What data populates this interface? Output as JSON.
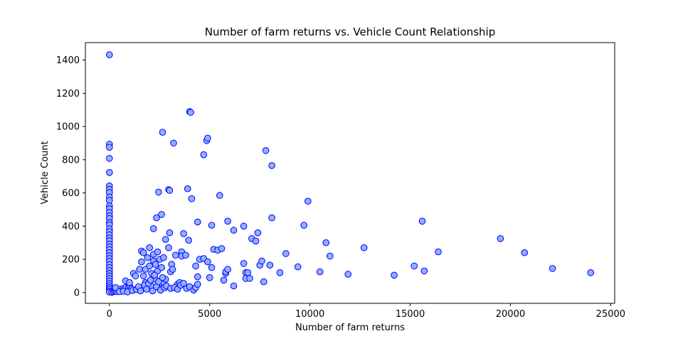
{
  "chart_data": {
    "type": "scatter",
    "title": "Number of farm returns vs. Vehicle Count Relationship",
    "xlabel": "Number of farm returns",
    "ylabel": "Vehicle Count",
    "xlim": [
      -1200,
      25200
    ],
    "ylim": [
      -65,
      1505
    ],
    "xticks": [
      0,
      5000,
      10000,
      15000,
      20000,
      25000
    ],
    "yticks": [
      0,
      200,
      400,
      600,
      800,
      1000,
      1200,
      1400
    ],
    "grid": false,
    "legend": "none",
    "marker_face_color": "#90b0ff",
    "marker_edge_color": "#0000ff",
    "points": [
      [
        0,
        1432
      ],
      [
        0,
        893
      ],
      [
        0,
        875
      ],
      [
        0,
        808
      ],
      [
        0,
        723
      ],
      [
        0,
        642
      ],
      [
        0,
        621
      ],
      [
        0,
        602
      ],
      [
        0,
        575
      ],
      [
        0,
        555
      ],
      [
        0,
        522
      ],
      [
        0,
        505
      ],
      [
        0,
        482
      ],
      [
        0,
        462
      ],
      [
        0,
        446
      ],
      [
        0,
        422
      ],
      [
        0,
        408
      ],
      [
        0,
        384
      ],
      [
        0,
        367
      ],
      [
        0,
        348
      ],
      [
        0,
        328
      ],
      [
        0,
        312
      ],
      [
        0,
        292
      ],
      [
        0,
        275
      ],
      [
        0,
        258
      ],
      [
        0,
        240
      ],
      [
        0,
        222
      ],
      [
        0,
        205
      ],
      [
        0,
        188
      ],
      [
        0,
        168
      ],
      [
        0,
        150
      ],
      [
        0,
        132
      ],
      [
        0,
        115
      ],
      [
        0,
        100
      ],
      [
        0,
        85
      ],
      [
        0,
        70
      ],
      [
        0,
        55
      ],
      [
        0,
        42
      ],
      [
        0,
        30
      ],
      [
        0,
        20
      ],
      [
        0,
        10
      ],
      [
        0,
        3
      ],
      [
        120,
        2
      ],
      [
        200,
        5
      ],
      [
        260,
        8
      ],
      [
        320,
        12
      ],
      [
        380,
        6
      ],
      [
        450,
        15
      ],
      [
        520,
        20
      ],
      [
        600,
        10
      ],
      [
        680,
        25
      ],
      [
        750,
        18
      ],
      [
        820,
        30
      ],
      [
        880,
        12
      ],
      [
        950,
        28
      ],
      [
        1020,
        40
      ],
      [
        1100,
        22
      ],
      [
        800,
        70
      ],
      [
        1000,
        60
      ],
      [
        1200,
        115
      ],
      [
        1300,
        100
      ],
      [
        1400,
        25
      ],
      [
        1500,
        140
      ],
      [
        1600,
        250
      ],
      [
        1600,
        185
      ],
      [
        1700,
        240
      ],
      [
        1700,
        100
      ],
      [
        1800,
        60
      ],
      [
        1800,
        140
      ],
      [
        1900,
        210
      ],
      [
        2000,
        270
      ],
      [
        2000,
        160
      ],
      [
        2100,
        115
      ],
      [
        2100,
        40
      ],
      [
        2200,
        385
      ],
      [
        2200,
        190
      ],
      [
        2200,
        230
      ],
      [
        2300,
        170
      ],
      [
        2300,
        80
      ],
      [
        2350,
        450
      ],
      [
        2400,
        245
      ],
      [
        2400,
        130
      ],
      [
        2450,
        605
      ],
      [
        2500,
        200
      ],
      [
        2500,
        25
      ],
      [
        2600,
        470
      ],
      [
        2600,
        150
      ],
      [
        2650,
        965
      ],
      [
        2700,
        210
      ],
      [
        2700,
        60
      ],
      [
        2800,
        320
      ],
      [
        2800,
        80
      ],
      [
        2950,
        620
      ],
      [
        2950,
        270
      ],
      [
        3000,
        615
      ],
      [
        3000,
        360
      ],
      [
        3050,
        125
      ],
      [
        3100,
        170
      ],
      [
        3150,
        140
      ],
      [
        3200,
        900
      ],
      [
        3300,
        225
      ],
      [
        3400,
        50
      ],
      [
        3500,
        60
      ],
      [
        3600,
        245
      ],
      [
        3600,
        220
      ],
      [
        3700,
        355
      ],
      [
        3800,
        225
      ],
      [
        3900,
        625
      ],
      [
        3950,
        315
      ],
      [
        4000,
        1090
      ],
      [
        4050,
        1085
      ],
      [
        4100,
        565
      ],
      [
        4300,
        160
      ],
      [
        4400,
        425
      ],
      [
        4400,
        95
      ],
      [
        4500,
        200
      ],
      [
        4700,
        830
      ],
      [
        4700,
        205
      ],
      [
        4850,
        915
      ],
      [
        4900,
        930
      ],
      [
        4900,
        185
      ],
      [
        5000,
        90
      ],
      [
        5100,
        150
      ],
      [
        5100,
        405
      ],
      [
        5200,
        260
      ],
      [
        5400,
        255
      ],
      [
        5500,
        585
      ],
      [
        5600,
        265
      ],
      [
        5700,
        75
      ],
      [
        5800,
        115
      ],
      [
        5800,
        125
      ],
      [
        5900,
        430
      ],
      [
        5900,
        140
      ],
      [
        6200,
        375
      ],
      [
        6200,
        40
      ],
      [
        6700,
        400
      ],
      [
        6700,
        175
      ],
      [
        6800,
        120
      ],
      [
        6800,
        85
      ],
      [
        6900,
        120
      ],
      [
        7000,
        85
      ],
      [
        7100,
        325
      ],
      [
        7300,
        310
      ],
      [
        7400,
        360
      ],
      [
        7500,
        165
      ],
      [
        7600,
        190
      ],
      [
        7700,
        65
      ],
      [
        7800,
        855
      ],
      [
        8000,
        165
      ],
      [
        8100,
        765
      ],
      [
        8100,
        450
      ],
      [
        8500,
        120
      ],
      [
        8800,
        235
      ],
      [
        9400,
        155
      ],
      [
        9700,
        405
      ],
      [
        9900,
        550
      ],
      [
        10500,
        125
      ],
      [
        10800,
        300
      ],
      [
        11000,
        220
      ],
      [
        11900,
        110
      ],
      [
        12700,
        270
      ],
      [
        14200,
        105
      ],
      [
        15200,
        160
      ],
      [
        15600,
        430
      ],
      [
        15700,
        130
      ],
      [
        16400,
        245
      ],
      [
        19500,
        325
      ],
      [
        20700,
        240
      ],
      [
        22100,
        145
      ],
      [
        24000,
        120
      ],
      [
        300,
        30
      ],
      [
        500,
        5
      ],
      [
        700,
        8
      ],
      [
        900,
        4
      ],
      [
        1150,
        12
      ],
      [
        1350,
        18
      ],
      [
        1450,
        35
      ],
      [
        1550,
        10
      ],
      [
        1750,
        45
      ],
      [
        1850,
        20
      ],
      [
        1950,
        55
      ],
      [
        2050,
        75
      ],
      [
        2150,
        10
      ],
      [
        2250,
        105
      ],
      [
        2350,
        35
      ],
      [
        2450,
        65
      ],
      [
        2550,
        15
      ],
      [
        2650,
        90
      ],
      [
        2750,
        30
      ],
      [
        2850,
        40
      ],
      [
        3050,
        25
      ],
      [
        3250,
        30
      ],
      [
        3400,
        20
      ],
      [
        3550,
        45
      ],
      [
        3700,
        55
      ],
      [
        3850,
        25
      ],
      [
        4000,
        35
      ],
      [
        4200,
        15
      ],
      [
        4300,
        30
      ],
      [
        4400,
        50
      ]
    ]
  }
}
